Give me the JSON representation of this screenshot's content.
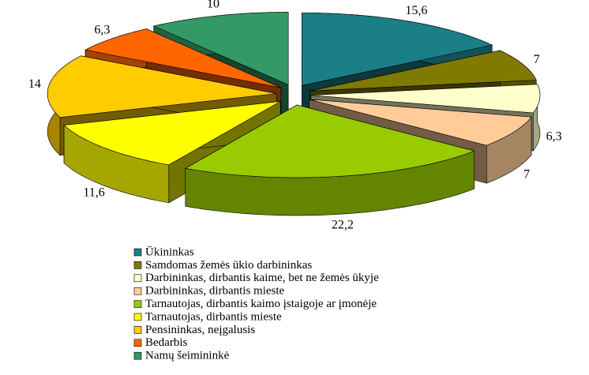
{
  "chart_data": {
    "type": "pie3d",
    "categories": [
      "Ūkininkas",
      "Samdomas žemės ūkio darbininkas",
      "Darbininkas, dirbantis kaime, bet ne žemės ūkyje",
      "Darbininkas, dirbantis mieste",
      "Tarnautojas, dirbantis kaimo įstaigoje ar įmonėje",
      "Tarnautojas, dirbantis mieste",
      "Pensininkas, neįgalusis",
      "Bedarbis",
      "Namų šeimininkė"
    ],
    "values": [
      15.6,
      7,
      6.3,
      7,
      22.2,
      11.6,
      14,
      6.3,
      10
    ],
    "value_labels": [
      "15,6",
      "7",
      "6,3",
      "7",
      "22,2",
      "11,6",
      "14",
      "6,3",
      "10"
    ],
    "colors": [
      "#1a7f86",
      "#807a00",
      "#ffffcc",
      "#ffcc99",
      "#99cc00",
      "#ffff00",
      "#ffcc00",
      "#ff6600",
      "#339966"
    ],
    "legend": "bottom"
  }
}
